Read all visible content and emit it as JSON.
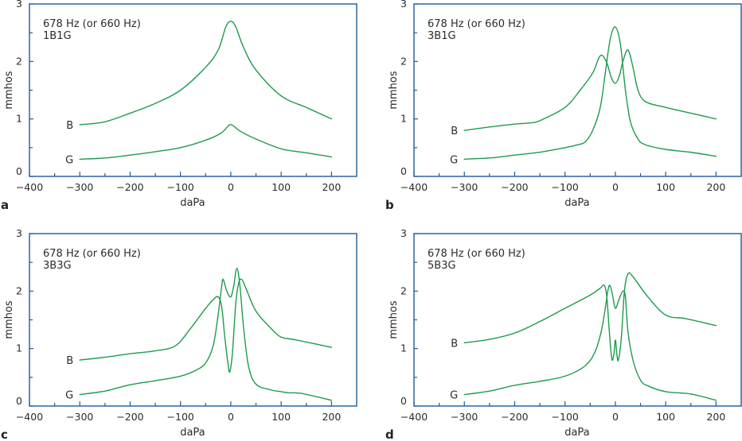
{
  "figure": {
    "axis_color": "#1d5b9a",
    "curve_color": "#1f9a4e",
    "text_color": "#2b2b2b"
  },
  "chart_data": [
    {
      "panel": "a",
      "type": "line",
      "title": "",
      "annotation_lines": [
        "678 Hz (or 660 Hz)",
        "1B1G"
      ],
      "xlabel": "daPa",
      "ylabel": "mmhos",
      "xlim": [
        -400,
        250
      ],
      "ylim": [
        0,
        3
      ],
      "xticks": [
        -400,
        -300,
        -200,
        -100,
        0,
        100,
        200
      ],
      "xtick_labels": [
        "−400",
        "−300",
        "−200",
        "−100",
        "0",
        "100",
        "200"
      ],
      "xminor_ticks": [
        -350,
        -250,
        -150,
        -50,
        50,
        150
      ],
      "yticks": [
        0,
        1,
        2,
        3
      ],
      "ytick_labels": [
        "0",
        "1",
        "2",
        "3"
      ],
      "yminor_ticks": [
        0.5,
        1.5,
        2.5
      ],
      "grid": false,
      "series": [
        {
          "name": "B",
          "x": [
            -300,
            -250,
            -200,
            -150,
            -100,
            -50,
            -25,
            -10,
            0,
            10,
            25,
            50,
            100,
            150,
            200
          ],
          "y": [
            0.9,
            0.95,
            1.1,
            1.27,
            1.5,
            1.9,
            2.2,
            2.6,
            2.7,
            2.6,
            2.25,
            1.85,
            1.4,
            1.2,
            1.0
          ]
        },
        {
          "name": "G",
          "x": [
            -300,
            -250,
            -200,
            -150,
            -100,
            -50,
            -20,
            -5,
            0,
            5,
            20,
            50,
            100,
            150,
            200
          ],
          "y": [
            0.3,
            0.32,
            0.37,
            0.43,
            0.5,
            0.63,
            0.75,
            0.88,
            0.9,
            0.88,
            0.78,
            0.65,
            0.48,
            0.41,
            0.34
          ]
        }
      ]
    },
    {
      "panel": "b",
      "type": "line",
      "title": "",
      "annotation_lines": [
        "678 Hz (or 660 Hz)",
        "3B1G"
      ],
      "xlabel": "daPa",
      "ylabel": "mmhos",
      "xlim": [
        -400,
        250
      ],
      "ylim": [
        0,
        3
      ],
      "xticks": [
        -400,
        -300,
        -200,
        -100,
        0,
        100,
        200
      ],
      "xtick_labels": [
        "−400",
        "−300",
        "−200",
        "−100",
        "0",
        "100",
        "200"
      ],
      "xminor_ticks": [
        -350,
        -250,
        -150,
        -50,
        50,
        150
      ],
      "yticks": [
        0,
        1,
        2,
        3
      ],
      "ytick_labels": [
        "0",
        "1",
        "2",
        "3"
      ],
      "yminor_ticks": [
        0.5,
        1.5,
        2.5
      ],
      "grid": false,
      "series": [
        {
          "name": "B",
          "x": [
            -300,
            -250,
            -200,
            -170,
            -150,
            -100,
            -70,
            -45,
            -30,
            -18,
            -8,
            0,
            8,
            15,
            25,
            35,
            45,
            60,
            100,
            150,
            200
          ],
          "y": [
            0.8,
            0.86,
            0.91,
            0.93,
            0.97,
            1.2,
            1.5,
            1.8,
            2.1,
            2.0,
            1.72,
            1.62,
            1.75,
            2.0,
            2.2,
            1.9,
            1.5,
            1.3,
            1.2,
            1.1,
            1.0
          ]
        },
        {
          "name": "G",
          "x": [
            -300,
            -250,
            -200,
            -150,
            -100,
            -75,
            -60,
            -45,
            -30,
            -20,
            -10,
            0,
            10,
            20,
            30,
            45,
            60,
            100,
            150,
            200
          ],
          "y": [
            0.3,
            0.32,
            0.37,
            0.42,
            0.5,
            0.55,
            0.6,
            0.8,
            1.2,
            1.8,
            2.4,
            2.6,
            2.3,
            1.5,
            0.95,
            0.65,
            0.55,
            0.47,
            0.42,
            0.35
          ]
        }
      ]
    },
    {
      "panel": "c",
      "type": "line",
      "title": "",
      "annotation_lines": [
        "678 Hz (or 660 Hz)",
        "3B3G"
      ],
      "xlabel": "daPa",
      "ylabel": "mmhos",
      "xlim": [
        -400,
        250
      ],
      "ylim": [
        0,
        3
      ],
      "xticks": [
        -400,
        -300,
        -200,
        -100,
        0,
        100,
        200
      ],
      "xtick_labels": [
        "−400",
        "−300",
        "−200",
        "−100",
        "0",
        "100",
        "200"
      ],
      "xminor_ticks": [
        -350,
        -250,
        -150,
        -50,
        50,
        150
      ],
      "yticks": [
        0,
        1,
        2,
        3
      ],
      "ytick_labels": [
        "0",
        "1",
        "2",
        "3"
      ],
      "yminor_ticks": [
        0.5,
        1.5,
        2.5
      ],
      "grid": false,
      "series": [
        {
          "name": "B",
          "x": [
            -300,
            -250,
            -200,
            -150,
            -110,
            -80,
            -50,
            -35,
            -25,
            -18,
            -12,
            -5,
            -2,
            3,
            10,
            16,
            22,
            30,
            50,
            80,
            100,
            130,
            200
          ],
          "y": [
            0.8,
            0.85,
            0.91,
            0.96,
            1.05,
            1.35,
            1.7,
            1.85,
            1.9,
            1.72,
            1.2,
            0.7,
            0.6,
            0.9,
            1.8,
            2.15,
            2.2,
            2.05,
            1.65,
            1.35,
            1.2,
            1.15,
            1.02
          ]
        },
        {
          "name": "G",
          "x": [
            -300,
            -250,
            -200,
            -150,
            -100,
            -70,
            -50,
            -35,
            -25,
            -18,
            -15,
            -8,
            0,
            6,
            12,
            18,
            25,
            35,
            50,
            80,
            100,
            115,
            140,
            200
          ],
          "y": [
            0.2,
            0.26,
            0.37,
            0.44,
            0.52,
            0.62,
            0.75,
            1.05,
            1.6,
            2.1,
            2.2,
            2.0,
            1.9,
            2.1,
            2.4,
            2.1,
            1.4,
            0.7,
            0.38,
            0.28,
            0.25,
            0.23,
            0.22,
            0.1
          ]
        }
      ]
    },
    {
      "panel": "d",
      "type": "line",
      "title": "",
      "annotation_lines": [
        "678 Hz (or 660 Hz)",
        "5B3G"
      ],
      "xlabel": "daPa",
      "ylabel": "mmhos",
      "xlim": [
        -400,
        250
      ],
      "ylim": [
        0,
        3
      ],
      "xticks": [
        -400,
        -300,
        -200,
        -100,
        0,
        100,
        200
      ],
      "xtick_labels": [
        "−400",
        "−300",
        "−200",
        "−100",
        "0",
        "100",
        "200"
      ],
      "xminor_ticks": [
        -350,
        -250,
        -150,
        -50,
        50,
        150
      ],
      "yticks": [
        0,
        1,
        2,
        3
      ],
      "ytick_labels": [
        "0",
        "1",
        "2",
        "3"
      ],
      "yminor_ticks": [
        0.5,
        1.5,
        2.5
      ],
      "grid": false,
      "series": [
        {
          "name": "B",
          "x": [
            -300,
            -250,
            -200,
            -150,
            -100,
            -50,
            -30,
            -22,
            -17,
            -12,
            -7,
            -3,
            0,
            3,
            6,
            12,
            18,
            25,
            35,
            60,
            90,
            110,
            140,
            200
          ],
          "y": [
            1.1,
            1.16,
            1.27,
            1.47,
            1.7,
            1.93,
            2.05,
            2.1,
            1.9,
            1.3,
            0.82,
            0.9,
            1.15,
            0.9,
            0.8,
            1.2,
            2.0,
            2.3,
            2.25,
            1.95,
            1.65,
            1.55,
            1.52,
            1.4
          ]
        },
        {
          "name": "G",
          "x": [
            -300,
            -250,
            -200,
            -150,
            -100,
            -60,
            -40,
            -28,
            -20,
            -15,
            -11,
            -6,
            0,
            7,
            15,
            20,
            25,
            35,
            50,
            65,
            100,
            150,
            200
          ],
          "y": [
            0.2,
            0.26,
            0.36,
            0.43,
            0.52,
            0.7,
            0.95,
            1.3,
            1.7,
            2.0,
            2.1,
            1.95,
            1.7,
            1.85,
            2.0,
            1.9,
            1.3,
            0.8,
            0.45,
            0.35,
            0.25,
            0.21,
            0.1
          ]
        }
      ]
    }
  ]
}
